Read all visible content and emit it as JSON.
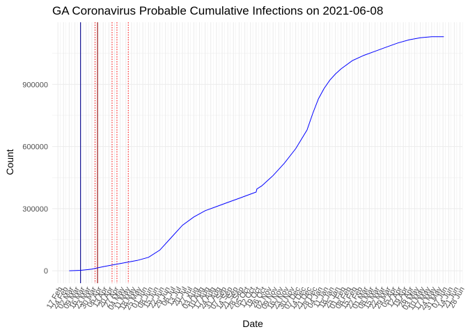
{
  "chart_data": {
    "type": "line",
    "title": "GA Coronavirus Probable Cumulative Infections on 2021-06-08",
    "xlabel": "Date",
    "ylabel": "Count",
    "ylim": [
      -60000,
      1200000
    ],
    "yticks": [
      0,
      300000,
      600000,
      900000
    ],
    "ytick_labels": [
      "0",
      "300000",
      "600000",
      "900000"
    ],
    "xlim": [
      "2020-02-10",
      "2021-07-01"
    ],
    "grid": true,
    "legend": "none",
    "colors": {
      "series": "#0000ff",
      "vline_solid_blue": "#00008b",
      "vline_solid_red": "#8b0000",
      "vline_dotted_red": "#ff0000",
      "grid": "#ebebeb"
    },
    "x_tick_labels": [
      "17 Feb",
      "24 Feb",
      "02 Mar",
      "09 Mar",
      "16 Mar",
      "23 Mar",
      "30 Mar",
      "06 Apr",
      "13 Apr",
      "20 Apr",
      "27 Apr",
      "04 May",
      "11 May",
      "18 May",
      "25 May",
      "01 Jun",
      "08 Jun",
      "15 Jun",
      "22 Jun",
      "29 Jun",
      "06 Jul",
      "13 Jul",
      "20 Jul",
      "27 Jul",
      "03 Aug",
      "10 Aug",
      "17 Aug",
      "24 Aug",
      "31 Aug",
      "07 Sep",
      "14 Sep",
      "21 Sep",
      "28 Sep",
      "05 Oct",
      "12 Oct",
      "19 Oct",
      "26 Oct",
      "02 Nov",
      "09 Nov",
      "16 Nov",
      "23 Nov",
      "30 Nov",
      "07 Dec",
      "14 Dec",
      "21 Dec",
      "28 Dec",
      "04 Jan",
      "11 Jan",
      "18 Jan",
      "25 Jan",
      "01 Feb",
      "08 Feb",
      "15 Feb",
      "22 Feb",
      "01 Mar",
      "08 Mar",
      "15 Mar",
      "22 Mar",
      "29 Mar",
      "05 Apr",
      "12 Apr",
      "19 Apr",
      "26 Apr",
      "03 May",
      "10 May",
      "17 May",
      "24 May",
      "31 May",
      "07 Jun",
      "14 Jun",
      "21 Jun",
      "28 Jun"
    ],
    "vertical_lines": [
      {
        "date": "2020-03-16",
        "style": "solid",
        "color": "#00008b"
      },
      {
        "date": "2020-04-03",
        "style": "dotted",
        "color": "#ff0000"
      },
      {
        "date": "2020-04-06",
        "style": "solid",
        "color": "#8b0000"
      },
      {
        "date": "2020-04-24",
        "style": "dotted",
        "color": "#ff0000"
      },
      {
        "date": "2020-04-30",
        "style": "dotted",
        "color": "#ff0000"
      },
      {
        "date": "2020-05-14",
        "style": "dotted",
        "color": "#ff0000"
      }
    ],
    "series": [
      {
        "x": [
          "2020-03-02",
          "2020-03-16",
          "2020-03-30",
          "2020-04-13",
          "2020-04-27",
          "2020-05-11",
          "2020-05-25",
          "2020-06-08",
          "2020-06-22",
          "2020-07-06",
          "2020-07-20",
          "2020-08-03",
          "2020-08-17",
          "2020-08-31",
          "2020-09-14",
          "2020-09-28",
          "2020-10-12",
          "2020-10-19",
          "2020-10-20",
          "2020-10-26",
          "2020-11-09",
          "2020-11-23",
          "2020-12-07",
          "2020-12-21",
          "2020-12-28",
          "2021-01-04",
          "2021-01-11",
          "2021-01-18",
          "2021-01-25",
          "2021-02-01",
          "2021-02-15",
          "2021-03-01",
          "2021-03-15",
          "2021-03-29",
          "2021-04-12",
          "2021-04-26",
          "2021-05-10",
          "2021-05-24",
          "2021-06-08"
        ],
        "values": [
          0,
          2000,
          8000,
          20000,
          30000,
          40000,
          50000,
          65000,
          100000,
          160000,
          220000,
          260000,
          290000,
          310000,
          330000,
          350000,
          370000,
          380000,
          395000,
          410000,
          460000,
          520000,
          590000,
          680000,
          760000,
          830000,
          880000,
          920000,
          950000,
          975000,
          1015000,
          1040000,
          1060000,
          1080000,
          1100000,
          1115000,
          1125000,
          1130000,
          1130000
        ]
      }
    ]
  }
}
